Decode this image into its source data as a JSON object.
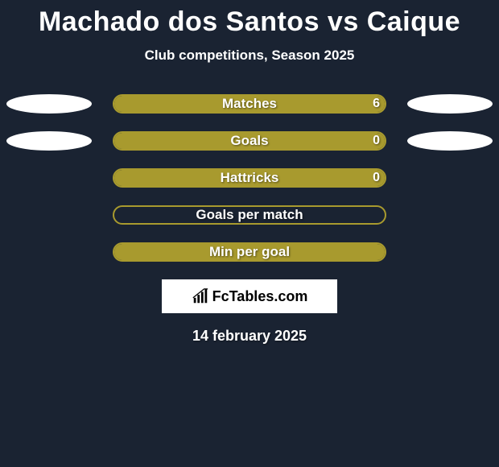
{
  "title": "Machado dos Santos vs Caique",
  "subtitle": "Club competitions, Season 2025",
  "date": "14 february 2025",
  "logo_text": "FcTables.com",
  "background_color": "#1a2332",
  "text_color": "#ffffff",
  "ellipse": {
    "color": "#ffffff",
    "width": 106,
    "height": 24
  },
  "bar": {
    "track_width": 340,
    "track_height": 24,
    "border_radius": 12,
    "border_color": "#a89a2e",
    "fill_color": "#a89a2e",
    "label_fontsize": 17,
    "label_color": "#ffffff"
  },
  "rows": [
    {
      "label": "Matches",
      "left_value": "",
      "right_value": "6",
      "left_fill_pct": 0,
      "right_fill_pct": 100,
      "show_left_ellipse": true,
      "show_right_ellipse": true
    },
    {
      "label": "Goals",
      "left_value": "",
      "right_value": "0",
      "left_fill_pct": 0,
      "right_fill_pct": 100,
      "show_left_ellipse": true,
      "show_right_ellipse": true
    },
    {
      "label": "Hattricks",
      "left_value": "",
      "right_value": "0",
      "left_fill_pct": 0,
      "right_fill_pct": 100,
      "show_left_ellipse": false,
      "show_right_ellipse": false
    },
    {
      "label": "Goals per match",
      "left_value": "",
      "right_value": "",
      "left_fill_pct": 0,
      "right_fill_pct": 0,
      "show_left_ellipse": false,
      "show_right_ellipse": false
    },
    {
      "label": "Min per goal",
      "left_value": "",
      "right_value": "",
      "left_fill_pct": 0,
      "right_fill_pct": 100,
      "show_left_ellipse": false,
      "show_right_ellipse": false
    }
  ]
}
